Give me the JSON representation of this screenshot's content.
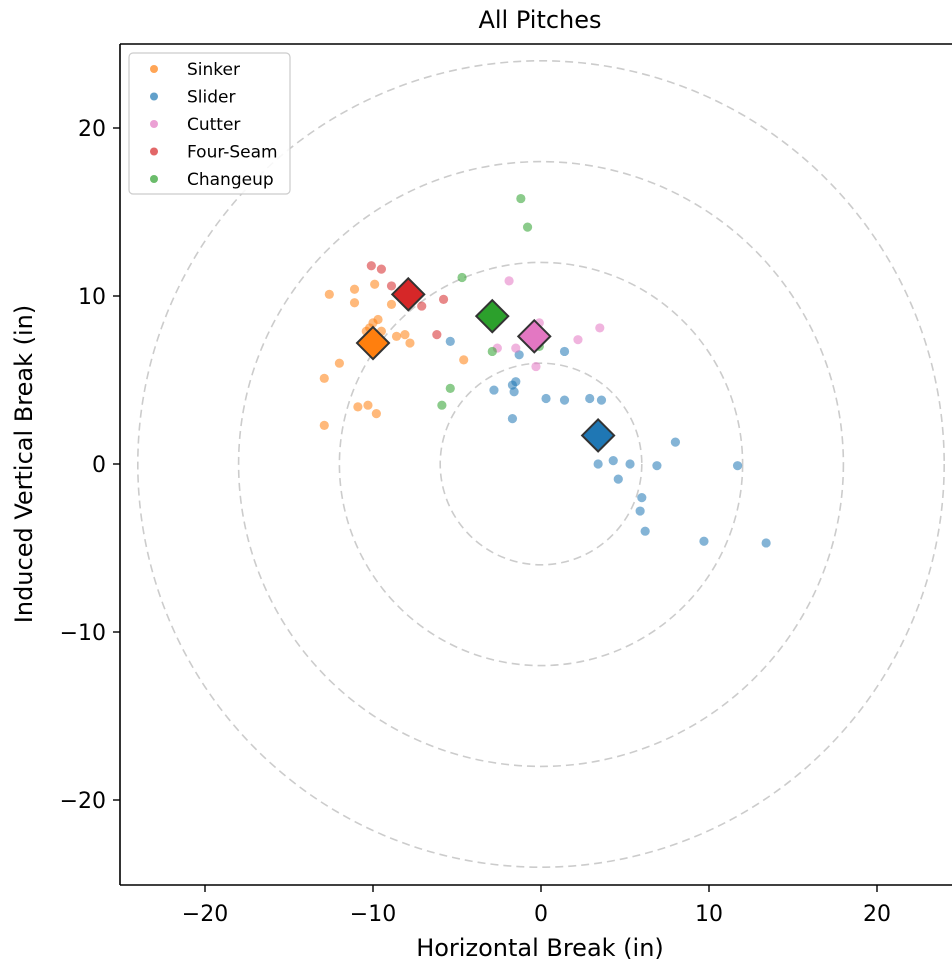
{
  "chart_data": {
    "type": "scatter",
    "title": "All Pitches",
    "xlabel": "Horizontal Break (in)",
    "ylabel": "Induced Vertical Break (in)",
    "xlim": [
      -25,
      25
    ],
    "ylim": [
      -25,
      25
    ],
    "xticks": [
      -20,
      -10,
      0,
      10,
      20
    ],
    "yticks": [
      -20,
      -10,
      0,
      10,
      20
    ],
    "tick_labels": [
      "−20",
      "−10",
      "0",
      "10",
      "20"
    ],
    "grid": false,
    "legend_position": "upper-left",
    "reference_circles": [
      6,
      12,
      18,
      24
    ],
    "series": [
      {
        "name": "Sinker",
        "color": "#ff7f0e",
        "mean": [
          -10.0,
          7.2
        ],
        "points": [
          [
            -12.6,
            10.1
          ],
          [
            -11.1,
            10.4
          ],
          [
            -9.9,
            10.7
          ],
          [
            -11.1,
            9.6
          ],
          [
            -8.9,
            9.5
          ],
          [
            -10.0,
            8.4
          ],
          [
            -9.7,
            8.6
          ],
          [
            -10.2,
            8.1
          ],
          [
            -10.4,
            7.9
          ],
          [
            -9.5,
            7.9
          ],
          [
            -8.6,
            7.6
          ],
          [
            -8.1,
            7.7
          ],
          [
            -7.8,
            7.2
          ],
          [
            -12.0,
            6.0
          ],
          [
            -12.9,
            5.1
          ],
          [
            -4.6,
            6.2
          ],
          [
            -10.9,
            3.4
          ],
          [
            -10.3,
            3.5
          ],
          [
            -9.8,
            3.0
          ],
          [
            -12.9,
            2.3
          ]
        ]
      },
      {
        "name": "Slider",
        "color": "#1f77b4",
        "mean": [
          3.4,
          1.7
        ],
        "points": [
          [
            -5.4,
            7.3
          ],
          [
            -1.3,
            6.5
          ],
          [
            1.4,
            6.7
          ],
          [
            -1.5,
            4.9
          ],
          [
            -1.7,
            4.7
          ],
          [
            -1.6,
            4.3
          ],
          [
            -2.8,
            4.4
          ],
          [
            0.3,
            3.9
          ],
          [
            1.4,
            3.8
          ],
          [
            2.9,
            3.9
          ],
          [
            3.6,
            3.8
          ],
          [
            -1.7,
            2.7
          ],
          [
            8.0,
            1.3
          ],
          [
            3.4,
            0.0
          ],
          [
            4.3,
            0.2
          ],
          [
            5.3,
            0.0
          ],
          [
            6.9,
            -0.1
          ],
          [
            11.7,
            -0.1
          ],
          [
            4.6,
            -0.9
          ],
          [
            6.0,
            -2.0
          ],
          [
            5.9,
            -2.8
          ],
          [
            6.2,
            -4.0
          ],
          [
            9.7,
            -4.6
          ],
          [
            13.4,
            -4.7
          ]
        ]
      },
      {
        "name": "Cutter",
        "color": "#e377c2",
        "mean": [
          -0.4,
          7.6
        ],
        "points": [
          [
            -1.9,
            10.9
          ],
          [
            -0.1,
            8.4
          ],
          [
            3.5,
            8.1
          ],
          [
            2.2,
            7.4
          ],
          [
            -2.6,
            6.9
          ],
          [
            -1.5,
            6.9
          ],
          [
            -0.3,
            5.8
          ]
        ]
      },
      {
        "name": "Four-Seam",
        "color": "#d62728",
        "mean": [
          -7.9,
          10.1
        ],
        "points": [
          [
            -10.1,
            11.8
          ],
          [
            -9.5,
            11.6
          ],
          [
            -8.9,
            10.6
          ],
          [
            -7.1,
            9.4
          ],
          [
            -5.8,
            9.8
          ],
          [
            -6.2,
            7.7
          ]
        ]
      },
      {
        "name": "Changeup",
        "color": "#2ca02c",
        "mean": [
          -2.9,
          8.8
        ],
        "points": [
          [
            -1.2,
            15.8
          ],
          [
            -0.8,
            14.1
          ],
          [
            -4.7,
            11.1
          ],
          [
            -2.9,
            6.7
          ],
          [
            -0.1,
            7.0
          ],
          [
            -5.4,
            4.5
          ],
          [
            -5.9,
            3.5
          ]
        ]
      }
    ]
  }
}
